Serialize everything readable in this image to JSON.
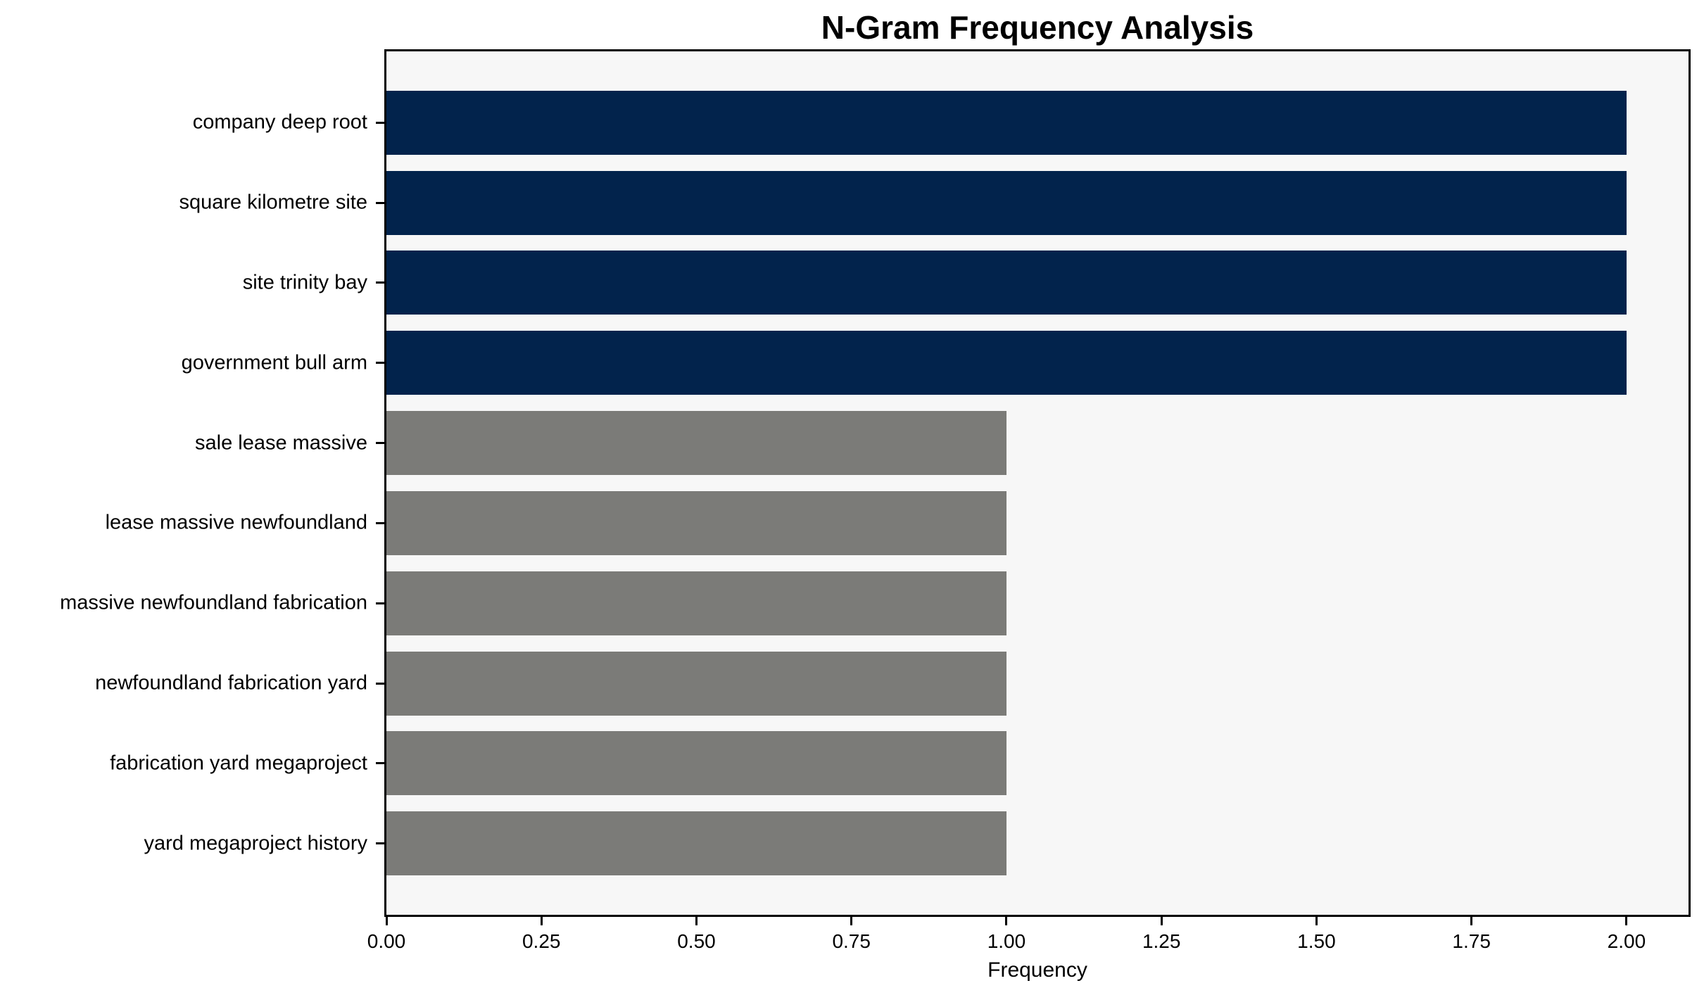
{
  "chart_data": {
    "type": "bar",
    "orientation": "horizontal",
    "title": "N-Gram Frequency Analysis",
    "xlabel": "Frequency",
    "ylabel": "",
    "categories": [
      "company deep root",
      "square kilometre site",
      "site trinity bay",
      "government bull arm",
      "sale lease massive",
      "lease massive newfoundland",
      "massive newfoundland fabrication",
      "newfoundland fabrication yard",
      "fabrication yard megaproject",
      "yard megaproject history"
    ],
    "values": [
      2,
      2,
      2,
      2,
      1,
      1,
      1,
      1,
      1,
      1
    ],
    "bar_colors": [
      "#02234c",
      "#02234c",
      "#02234c",
      "#02234c",
      "#7b7b78",
      "#7b7b78",
      "#7b7b78",
      "#7b7b78",
      "#7b7b78",
      "#7b7b78"
    ],
    "xlim": [
      0,
      2.1
    ],
    "xticks": [
      0,
      0.25,
      0.5,
      0.75,
      1.0,
      1.25,
      1.5,
      1.75,
      2.0
    ],
    "xtick_labels": [
      "0.00",
      "0.25",
      "0.50",
      "0.75",
      "1.00",
      "1.25",
      "1.50",
      "1.75",
      "2.00"
    ],
    "grid": false,
    "legend": "none",
    "colors": {
      "highlight_bar": "#02234c",
      "regular_bar": "#7b7b78",
      "plot_background": "#f7f7f7",
      "figure_background": "#ffffff",
      "axis": "#000000",
      "text": "#000000"
    }
  }
}
